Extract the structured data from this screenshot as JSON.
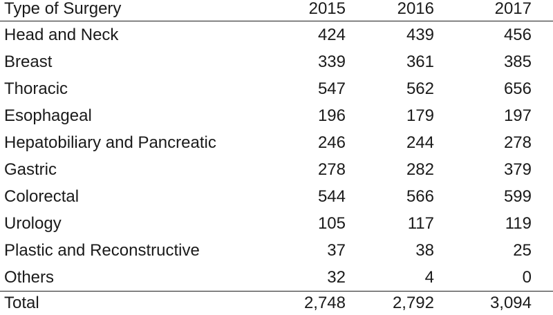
{
  "table": {
    "headers": [
      "Type of Surgery",
      "2015",
      "2016",
      "2017"
    ],
    "rows": [
      [
        "Head and Neck",
        "424",
        "439",
        "456"
      ],
      [
        "Breast",
        "339",
        "361",
        "385"
      ],
      [
        "Thoracic",
        "547",
        "562",
        "656"
      ],
      [
        "Esophageal",
        "196",
        "179",
        "197"
      ],
      [
        "Hepatobiliary and Pancreatic",
        "246",
        "244",
        "278"
      ],
      [
        "Gastric",
        "278",
        "282",
        "379"
      ],
      [
        "Colorectal",
        "544",
        "566",
        "599"
      ],
      [
        "Urology",
        "105",
        "117",
        "119"
      ],
      [
        "Plastic and Reconstructive",
        "37",
        "38",
        "25"
      ],
      [
        "Others",
        "32",
        "4",
        "0"
      ]
    ],
    "total": [
      "Total",
      "2,748",
      "2,792",
      "3,094"
    ]
  }
}
